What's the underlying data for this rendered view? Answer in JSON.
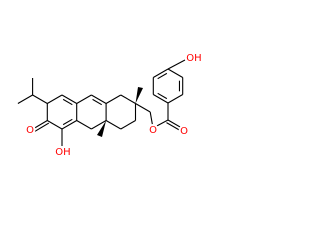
{
  "atom_labels": [
    "OH",
    "O",
    "OH",
    "O",
    "O"
  ]
}
